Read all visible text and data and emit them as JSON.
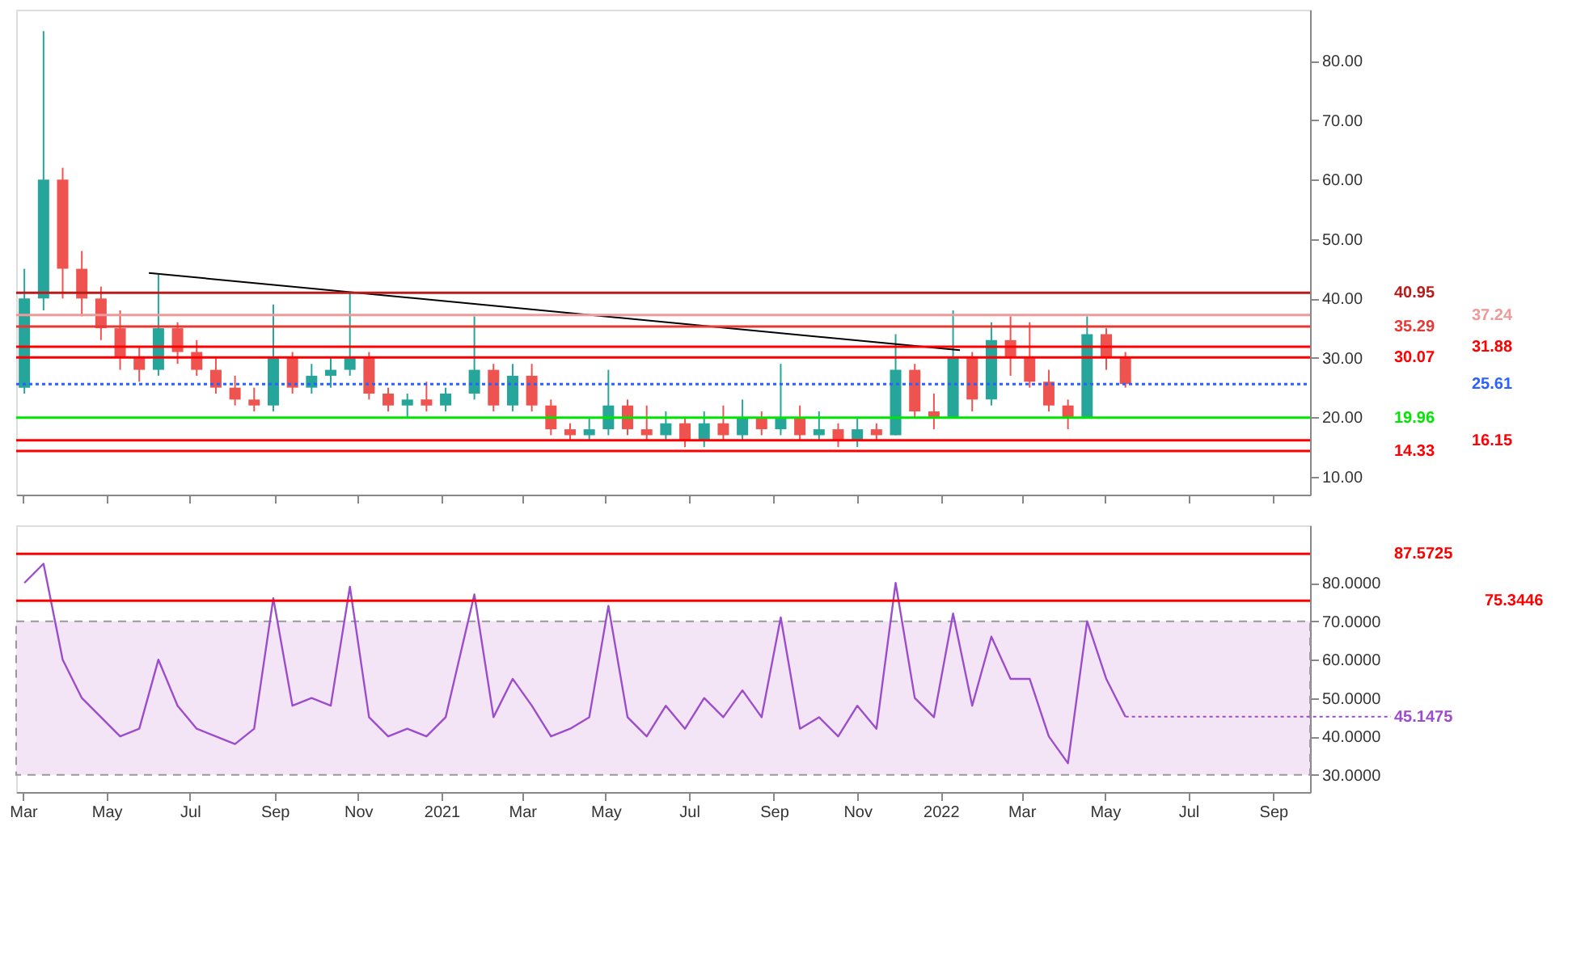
{
  "chart_data": [
    {
      "type": "candlestick",
      "x": [
        "2020-03-02",
        "2020-03-16",
        "2020-03-30",
        "2020-04-13",
        "2020-04-27",
        "2020-05-11",
        "2020-05-25",
        "2020-06-08",
        "2020-06-22",
        "2020-07-06",
        "2020-07-20",
        "2020-08-03",
        "2020-08-17",
        "2020-08-31",
        "2020-09-14",
        "2020-09-28",
        "2020-10-12",
        "2020-10-26",
        "2020-11-09",
        "2020-11-23",
        "2020-12-07",
        "2020-12-21",
        "2021-01-04",
        "2021-01-25",
        "2021-02-08",
        "2021-02-22",
        "2021-03-08",
        "2021-03-22",
        "2021-04-05",
        "2021-04-19",
        "2021-05-03",
        "2021-05-17",
        "2021-05-31",
        "2021-06-14",
        "2021-06-28",
        "2021-07-12",
        "2021-07-26",
        "2021-08-09",
        "2021-08-23",
        "2021-09-06",
        "2021-09-20",
        "2021-10-04",
        "2021-10-18",
        "2021-11-01",
        "2021-11-15",
        "2021-11-29",
        "2021-12-13",
        "2021-12-27",
        "2022-01-10",
        "2022-01-24",
        "2022-02-07",
        "2022-02-21",
        "2022-03-07",
        "2022-03-21",
        "2022-04-04",
        "2022-04-18",
        "2022-05-02",
        "2022-05-16"
      ],
      "ohlc": [
        [
          25,
          45,
          24,
          40
        ],
        [
          40,
          85,
          38,
          60
        ],
        [
          60,
          62,
          40,
          45
        ],
        [
          45,
          48,
          37,
          40
        ],
        [
          40,
          42,
          33,
          35
        ],
        [
          35,
          38,
          28,
          30
        ],
        [
          30,
          32,
          26,
          28
        ],
        [
          28,
          44,
          27,
          35
        ],
        [
          35,
          36,
          29,
          31
        ],
        [
          31,
          33,
          27,
          28
        ],
        [
          28,
          30,
          24,
          25
        ],
        [
          25,
          27,
          22,
          23
        ],
        [
          23,
          25,
          21,
          22
        ],
        [
          22,
          39,
          21,
          30
        ],
        [
          30,
          31,
          24,
          25
        ],
        [
          25,
          29,
          24,
          27
        ],
        [
          27,
          30,
          25,
          28
        ],
        [
          28,
          41,
          27,
          30
        ],
        [
          30,
          31,
          23,
          24
        ],
        [
          24,
          25,
          21,
          22
        ],
        [
          22,
          24,
          20,
          23
        ],
        [
          23,
          26,
          21,
          22
        ],
        [
          22,
          25,
          21,
          24
        ],
        [
          24,
          37,
          23,
          28
        ],
        [
          28,
          29,
          21,
          22
        ],
        [
          22,
          29,
          21,
          27
        ],
        [
          27,
          29,
          21,
          22
        ],
        [
          22,
          23,
          17,
          18
        ],
        [
          18,
          19,
          16,
          17
        ],
        [
          17,
          20,
          16,
          18
        ],
        [
          18,
          28,
          17,
          22
        ],
        [
          22,
          23,
          17,
          18
        ],
        [
          18,
          22,
          16,
          17
        ],
        [
          17,
          21,
          16,
          19
        ],
        [
          19,
          20,
          15,
          16
        ],
        [
          16,
          21,
          15,
          19
        ],
        [
          19,
          22,
          16,
          17
        ],
        [
          17,
          23,
          16,
          20
        ],
        [
          20,
          21,
          17,
          18
        ],
        [
          18,
          29,
          17,
          20
        ],
        [
          20,
          22,
          16,
          17
        ],
        [
          17,
          21,
          16,
          18
        ],
        [
          18,
          19,
          15,
          16
        ],
        [
          16,
          20,
          15,
          18
        ],
        [
          18,
          19,
          16,
          17
        ],
        [
          17,
          34,
          17,
          28
        ],
        [
          28,
          29,
          20,
          21
        ],
        [
          21,
          24,
          18,
          20
        ],
        [
          20,
          38,
          20,
          30
        ],
        [
          30,
          31,
          21,
          23
        ],
        [
          23,
          36,
          22,
          33
        ],
        [
          33,
          37,
          27,
          30
        ],
        [
          30,
          36,
          25,
          26
        ],
        [
          26,
          28,
          21,
          22
        ],
        [
          22,
          23,
          18,
          20
        ],
        [
          20,
          37,
          20,
          34
        ],
        [
          34,
          35,
          28,
          30
        ],
        [
          30,
          31,
          25,
          25.61
        ]
      ],
      "colors": [
        "#26a69a",
        "#26a69a",
        "#ef5350",
        "#ef5350",
        "#ef5350",
        "#ef5350",
        "#ef5350",
        "#26a69a",
        "#ef5350",
        "#ef5350",
        "#ef5350",
        "#ef5350",
        "#ef5350",
        "#26a69a",
        "#ef5350",
        "#26a69a",
        "#26a69a",
        "#26a69a",
        "#ef5350",
        "#ef5350",
        "#26a69a",
        "#ef5350",
        "#26a69a",
        "#26a69a",
        "#ef5350",
        "#26a69a",
        "#ef5350",
        "#ef5350",
        "#ef5350",
        "#26a69a",
        "#26a69a",
        "#ef5350",
        "#ef5350",
        "#26a69a",
        "#ef5350",
        "#26a69a",
        "#ef5350",
        "#26a69a",
        "#ef5350",
        "#26a69a",
        "#ef5350",
        "#26a69a",
        "#ef5350",
        "#26a69a",
        "#ef5350",
        "#26a69a",
        "#ef5350",
        "#ef5350",
        "#26a69a",
        "#ef5350",
        "#26a69a",
        "#ef5350",
        "#ef5350",
        "#ef5350",
        "#ef5350",
        "#26a69a",
        "#ef5350",
        "#ef5350"
      ],
      "series": [
        {
          "type": "line",
          "x": [
            "2020-06-01",
            "2022-01-15"
          ],
          "values": [
            44.3,
            31.3
          ],
          "color": "#000000"
        }
      ],
      "xlim": [
        "2020-02-25",
        "2022-09-28"
      ],
      "ylim": [
        7,
        88.6
      ],
      "yticks": [
        {
          "value": 10,
          "label": "10.00"
        },
        {
          "value": 20,
          "label": "20.00"
        },
        {
          "value": 30,
          "label": "30.00"
        },
        {
          "value": 40,
          "label": "40.00"
        },
        {
          "value": 50,
          "label": "50.00"
        },
        {
          "value": 60,
          "label": "60.00"
        },
        {
          "value": 70,
          "label": "70.00"
        },
        {
          "value": 80,
          "label": "80.00"
        }
      ],
      "xticks": [
        {
          "value": "2020-03-01",
          "label": null
        },
        {
          "value": "2020-05-01",
          "label": null
        },
        {
          "value": "2020-07-01",
          "label": null
        },
        {
          "value": "2020-09-01",
          "label": null
        },
        {
          "value": "2020-11-01",
          "label": null
        },
        {
          "value": "2021-01-01",
          "label": null
        },
        {
          "value": "2021-03-01",
          "label": null
        },
        {
          "value": "2021-05-01",
          "label": null
        },
        {
          "value": "2021-07-01",
          "label": null
        },
        {
          "value": "2021-09-01",
          "label": null
        },
        {
          "value": "2021-11-01",
          "label": null
        },
        {
          "value": "2022-01-01",
          "label": null
        },
        {
          "value": "2022-03-01",
          "label": null
        },
        {
          "value": "2022-05-01",
          "label": null
        },
        {
          "value": "2022-07-01",
          "label": null
        },
        {
          "value": "2022-09-01",
          "label": null
        }
      ],
      "tick_labels": "y",
      "ref_lines": [
        {
          "axis": "y",
          "value": 40.95,
          "label": "40.95",
          "color": "#b71c1c"
        },
        {
          "axis": "y",
          "value": 37.24,
          "label": "37.24",
          "color": "#ef9a9a"
        },
        {
          "axis": "y",
          "value": 35.29,
          "label": "35.29",
          "color": "#e53935"
        },
        {
          "axis": "y",
          "value": 31.88,
          "label": "31.88",
          "color": "#ff0000"
        },
        {
          "axis": "y",
          "value": 30.07,
          "label": "30.07",
          "color": "#ff0000"
        },
        {
          "axis": "y",
          "value": 25.61,
          "label": "25.61",
          "color": "#2962ff",
          "line_style": "dotted"
        },
        {
          "axis": "y",
          "value": 19.96,
          "label": "19.96",
          "color": "#00e600"
        },
        {
          "axis": "y",
          "value": 16.15,
          "label": "16.15",
          "color": "#ff0000"
        },
        {
          "axis": "y",
          "value": 14.33,
          "label": "14.33",
          "color": "#ff0000"
        }
      ]
    },
    {
      "type": "line",
      "x": [
        "2020-03-02",
        "2020-03-16",
        "2020-03-30",
        "2020-04-13",
        "2020-04-27",
        "2020-05-11",
        "2020-05-25",
        "2020-06-08",
        "2020-06-22",
        "2020-07-06",
        "2020-07-20",
        "2020-08-03",
        "2020-08-17",
        "2020-08-31",
        "2020-09-14",
        "2020-09-28",
        "2020-10-12",
        "2020-10-26",
        "2020-11-09",
        "2020-11-23",
        "2020-12-07",
        "2020-12-21",
        "2021-01-04",
        "2021-01-25",
        "2021-02-08",
        "2021-02-22",
        "2021-03-08",
        "2021-03-22",
        "2021-04-05",
        "2021-04-19",
        "2021-05-03",
        "2021-05-17",
        "2021-05-31",
        "2021-06-14",
        "2021-06-28",
        "2021-07-12",
        "2021-07-26",
        "2021-08-09",
        "2021-08-23",
        "2021-09-06",
        "2021-09-20",
        "2021-10-04",
        "2021-10-18",
        "2021-11-01",
        "2021-11-15",
        "2021-11-29",
        "2021-12-13",
        "2021-12-27",
        "2022-01-10",
        "2022-01-24",
        "2022-02-07",
        "2022-02-21",
        "2022-03-07",
        "2022-03-21",
        "2022-04-04",
        "2022-04-18",
        "2022-05-02",
        "2022-05-16"
      ],
      "series": [
        {
          "color": "#9c4dcc",
          "values": [
            80,
            85,
            60,
            50,
            45,
            40,
            42,
            60,
            48,
            42,
            40,
            38,
            42,
            76,
            48,
            50,
            48,
            79,
            45,
            40,
            42,
            40,
            45,
            77,
            45,
            55,
            48,
            40,
            42,
            45,
            74,
            45,
            40,
            48,
            42,
            50,
            45,
            52,
            45,
            71,
            42,
            45,
            40,
            48,
            42,
            80,
            50,
            45,
            72,
            48,
            66,
            55,
            55,
            40,
            33,
            70,
            55,
            45.1475
          ]
        }
      ],
      "xlim": [
        "2020-02-25",
        "2022-09-28"
      ],
      "ylim": [
        25.5,
        95
      ],
      "yticks": [
        {
          "value": 30,
          "label": "30.0000"
        },
        {
          "value": 40,
          "label": "40.0000"
        },
        {
          "value": 50,
          "label": "50.0000"
        },
        {
          "value": 60,
          "label": "60.0000"
        },
        {
          "value": 70,
          "label": "70.0000"
        },
        {
          "value": 80,
          "label": "80.0000"
        }
      ],
      "xticks": [
        {
          "value": "2020-03-01",
          "label": "Mar"
        },
        {
          "value": "2020-05-01",
          "label": "May"
        },
        {
          "value": "2020-07-01",
          "label": "Jul"
        },
        {
          "value": "2020-09-01",
          "label": "Sep"
        },
        {
          "value": "2020-11-01",
          "label": "Nov"
        },
        {
          "value": "2021-01-01",
          "label": "2021"
        },
        {
          "value": "2021-03-01",
          "label": "Mar"
        },
        {
          "value": "2021-05-01",
          "label": "May"
        },
        {
          "value": "2021-07-01",
          "label": "Jul"
        },
        {
          "value": "2021-09-01",
          "label": "Sep"
        },
        {
          "value": "2021-11-01",
          "label": "Nov"
        },
        {
          "value": "2022-01-01",
          "label": "2022"
        },
        {
          "value": "2022-03-01",
          "label": "Mar"
        },
        {
          "value": "2022-05-01",
          "label": "May"
        },
        {
          "value": "2022-07-01",
          "label": "Jul"
        },
        {
          "value": "2022-09-01",
          "label": "Sep"
        }
      ],
      "bands": [
        {
          "axis": "y",
          "from": 30,
          "to": 70,
          "color": "#f3e5f5"
        }
      ],
      "ref_lines": [
        {
          "axis": "y",
          "value": 87.5725,
          "label": "87.5725",
          "color": "#ff0000"
        },
        {
          "axis": "y",
          "value": 75.3446,
          "label": "75.3446",
          "color": "#ff0000"
        }
      ],
      "annotations": [
        {
          "text": "45.1475",
          "x": "2022-05-16",
          "y": 45.1475
        }
      ]
    }
  ]
}
